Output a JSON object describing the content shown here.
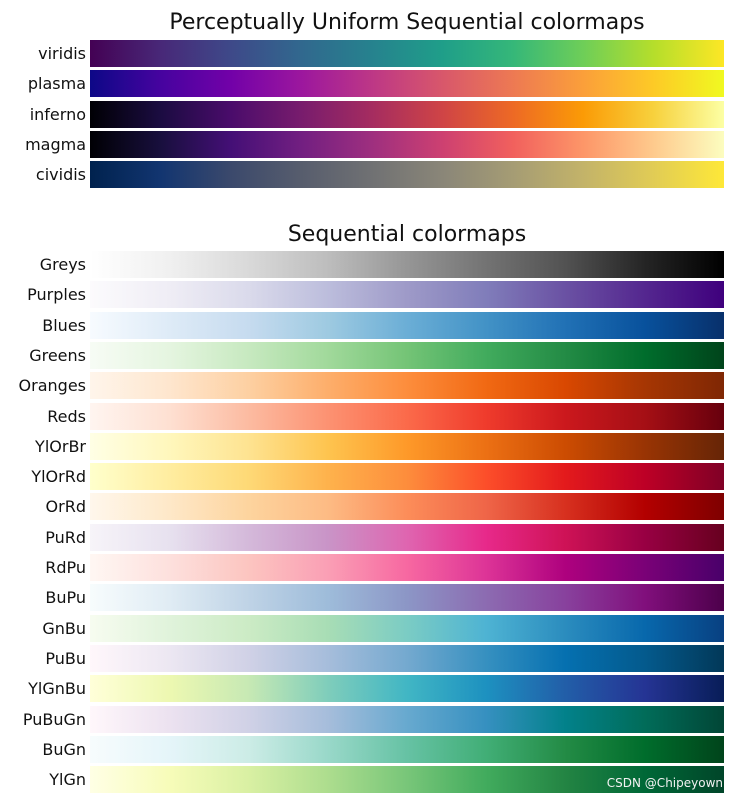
{
  "chart_data": [
    {
      "type": "colormap-reference",
      "title": "Perceptually Uniform Sequential colormaps",
      "colormaps": [
        {
          "name": "viridis",
          "colors": [
            "#440154",
            "#482878",
            "#3e4989",
            "#31688e",
            "#26828e",
            "#1f9e89",
            "#35b779",
            "#6ece58",
            "#b5de2b",
            "#fde725"
          ]
        },
        {
          "name": "plasma",
          "colors": [
            "#0d0887",
            "#46039f",
            "#7201a8",
            "#9c179e",
            "#bd3786",
            "#d8576b",
            "#ed7953",
            "#fb9f3a",
            "#fdca26",
            "#f0f921"
          ]
        },
        {
          "name": "inferno",
          "colors": [
            "#000004",
            "#1b0c41",
            "#4a0c6b",
            "#781c6d",
            "#a52c60",
            "#cf4446",
            "#ed6925",
            "#fb9b06",
            "#f7d13d",
            "#fcffa4"
          ]
        },
        {
          "name": "magma",
          "colors": [
            "#000004",
            "#180f3d",
            "#440f76",
            "#721f81",
            "#9e2f7f",
            "#cd4071",
            "#f1605d",
            "#fd9668",
            "#feca8d",
            "#fcfdbf"
          ]
        },
        {
          "name": "cividis",
          "colors": [
            "#00224e",
            "#123570",
            "#3b496c",
            "#575d6d",
            "#707173",
            "#8a8678",
            "#a59c74",
            "#c3b369",
            "#e1cc55",
            "#fee838"
          ]
        }
      ]
    },
    {
      "type": "colormap-reference",
      "title": "Sequential colormaps",
      "colormaps": [
        {
          "name": "Greys",
          "colors": [
            "#ffffff",
            "#f0f0f0",
            "#d9d9d9",
            "#bdbdbd",
            "#969696",
            "#737373",
            "#525252",
            "#252525",
            "#000000"
          ]
        },
        {
          "name": "Purples",
          "colors": [
            "#fcfbfd",
            "#efedf5",
            "#dadaeb",
            "#bcbddc",
            "#9e9ac8",
            "#807dba",
            "#6a51a3",
            "#54278f",
            "#3f007d"
          ]
        },
        {
          "name": "Blues",
          "colors": [
            "#f7fbff",
            "#deebf7",
            "#c6dbef",
            "#9ecae1",
            "#6baed6",
            "#4292c6",
            "#2171b5",
            "#08519c",
            "#08306b"
          ]
        },
        {
          "name": "Greens",
          "colors": [
            "#f7fcf5",
            "#e5f5e0",
            "#c7e9c0",
            "#a1d99b",
            "#74c476",
            "#41ab5d",
            "#238b45",
            "#006d2c",
            "#00441b"
          ]
        },
        {
          "name": "Oranges",
          "colors": [
            "#fff5eb",
            "#fee6ce",
            "#fdd0a2",
            "#fdae6b",
            "#fd8d3c",
            "#f16913",
            "#d94801",
            "#a63603",
            "#7f2704"
          ]
        },
        {
          "name": "Reds",
          "colors": [
            "#fff5f0",
            "#fee0d2",
            "#fcbba1",
            "#fc9272",
            "#fb6a4a",
            "#ef3b2c",
            "#cb181d",
            "#a50f15",
            "#67000d"
          ]
        },
        {
          "name": "YlOrBr",
          "colors": [
            "#ffffe5",
            "#fff7bc",
            "#fee391",
            "#fec44f",
            "#fe9929",
            "#ec7014",
            "#cc4c02",
            "#993404",
            "#662506"
          ]
        },
        {
          "name": "YlOrRd",
          "colors": [
            "#ffffcc",
            "#ffeda0",
            "#fed976",
            "#feb24c",
            "#fd8d3c",
            "#fc4e2a",
            "#e31a1c",
            "#bd0026",
            "#800026"
          ]
        },
        {
          "name": "OrRd",
          "colors": [
            "#fff7ec",
            "#fee8c8",
            "#fdd49e",
            "#fdbb84",
            "#fc8d59",
            "#ef6548",
            "#d7301f",
            "#b30000",
            "#7f0000"
          ]
        },
        {
          "name": "PuRd",
          "colors": [
            "#f7f4f9",
            "#e7e1ef",
            "#d4b9da",
            "#c994c7",
            "#df65b0",
            "#e7298a",
            "#ce1256",
            "#980043",
            "#67001f"
          ]
        },
        {
          "name": "RdPu",
          "colors": [
            "#fff7f3",
            "#fde0dd",
            "#fcc5c0",
            "#fa9fb5",
            "#f768a1",
            "#dd3497",
            "#ae017e",
            "#7a0177",
            "#49006a"
          ]
        },
        {
          "name": "BuPu",
          "colors": [
            "#f7fcfd",
            "#e0ecf4",
            "#bfd3e6",
            "#9ebcda",
            "#8c96c6",
            "#8c6bb1",
            "#88419d",
            "#810f7c",
            "#4d004b"
          ]
        },
        {
          "name": "GnBu",
          "colors": [
            "#f7fcf0",
            "#e0f3db",
            "#ccebc5",
            "#a8ddb5",
            "#7bccc4",
            "#4eb3d3",
            "#2b8cbe",
            "#0868ac",
            "#084081"
          ]
        },
        {
          "name": "PuBu",
          "colors": [
            "#fff7fb",
            "#ece7f2",
            "#d0d1e6",
            "#a6bddb",
            "#74a9cf",
            "#3690c0",
            "#0570b0",
            "#045a8d",
            "#023858"
          ]
        },
        {
          "name": "YlGnBu",
          "colors": [
            "#ffffd9",
            "#edf8b1",
            "#c7e9b4",
            "#7fcdbb",
            "#41b6c4",
            "#1d91c0",
            "#225ea8",
            "#253494",
            "#081d58"
          ]
        },
        {
          "name": "PuBuGn",
          "colors": [
            "#fff7fb",
            "#ece2f0",
            "#d0d1e6",
            "#a6bddb",
            "#67a9cf",
            "#3690c0",
            "#02818a",
            "#016c59",
            "#014636"
          ]
        },
        {
          "name": "BuGn",
          "colors": [
            "#f7fcfd",
            "#e5f5f9",
            "#ccece6",
            "#99d8c9",
            "#66c2a4",
            "#41ae76",
            "#238b45",
            "#006d2c",
            "#00441b"
          ]
        },
        {
          "name": "YlGn",
          "colors": [
            "#ffffe5",
            "#f7fcb9",
            "#d9f0a3",
            "#addd8e",
            "#78c679",
            "#41ab5d",
            "#238443",
            "#006837",
            "#004529"
          ]
        }
      ]
    }
  ],
  "watermark": "CSDN @Chipeyown"
}
